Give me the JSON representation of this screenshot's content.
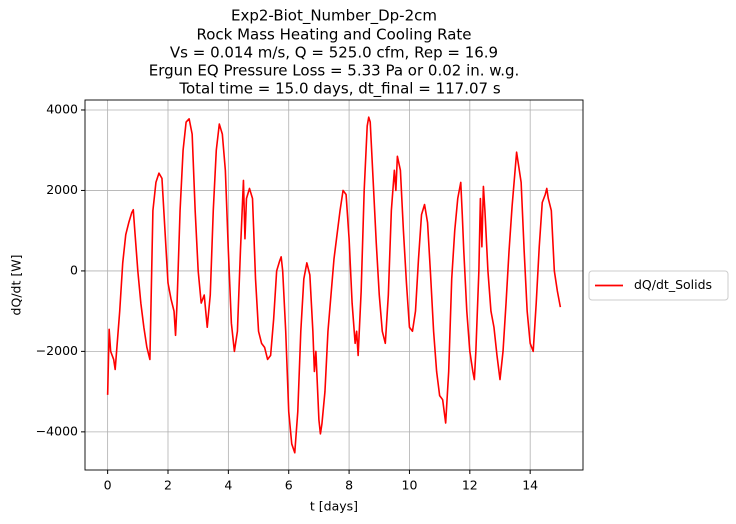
{
  "chart_data": {
    "type": "line",
    "title": [
      "Exp2-Biot_Number_Dp-2cm",
      "Rock Mass Heating and Cooling Rate",
      "Vs = 0.014 m/s, Q = 525.0 cfm, Rep = 16.9",
      "Ergun EQ Pressure Loss = 5.33 Pa or 0.02 in. w.g.",
      "Total time = 15.0 days, dt_final = 117.07 s"
    ],
    "x_label": "t [days]",
    "y_label": "dQ/dt [W]",
    "x": [
      0,
      0.05,
      0.1,
      0.2,
      0.25,
      0.4,
      0.5,
      0.6,
      0.7,
      0.8,
      0.85,
      0.9,
      1.0,
      1.1,
      1.2,
      1.3,
      1.4,
      1.5,
      1.6,
      1.7,
      1.8,
      1.9,
      2.0,
      2.1,
      2.2,
      2.25,
      2.3,
      2.4,
      2.5,
      2.6,
      2.7,
      2.8,
      2.9,
      3.0,
      3.1,
      3.2,
      3.3,
      3.4,
      3.5,
      3.6,
      3.7,
      3.8,
      3.9,
      4.0,
      4.1,
      4.2,
      4.3,
      4.4,
      4.5,
      4.55,
      4.6,
      4.7,
      4.8,
      4.9,
      5.0,
      5.1,
      5.2,
      5.3,
      5.4,
      5.5,
      5.6,
      5.7,
      5.75,
      5.8,
      5.9,
      6.0,
      6.1,
      6.2,
      6.3,
      6.4,
      6.5,
      6.6,
      6.7,
      6.8,
      6.85,
      6.9,
      7.0,
      7.05,
      7.1,
      7.2,
      7.3,
      7.5,
      7.7,
      7.8,
      7.9,
      8.0,
      8.1,
      8.2,
      8.25,
      8.3,
      8.4,
      8.5,
      8.6,
      8.65,
      8.7,
      8.8,
      8.9,
      9.0,
      9.1,
      9.2,
      9.3,
      9.4,
      9.5,
      9.55,
      9.6,
      9.7,
      9.8,
      9.9,
      10.0,
      10.1,
      10.2,
      10.3,
      10.4,
      10.5,
      10.6,
      10.7,
      10.8,
      10.9,
      11.0,
      11.1,
      11.2,
      11.3,
      11.4,
      11.5,
      11.6,
      11.7,
      11.75,
      11.8,
      11.9,
      12.0,
      12.1,
      12.15,
      12.2,
      12.3,
      12.35,
      12.4,
      12.45,
      12.5,
      12.6,
      12.7,
      12.8,
      12.9,
      13.0,
      13.1,
      13.2,
      13.3,
      13.4,
      13.5,
      13.55,
      13.6,
      13.7,
      13.8,
      13.9,
      14.0,
      14.1,
      14.2,
      14.3,
      14.4,
      14.5,
      14.55,
      14.6,
      14.7,
      14.8,
      14.9,
      15.0
    ],
    "series": [
      {
        "name": "dQ/dt_Solids",
        "color": "#ff0000",
        "values": [
          -3080,
          -1450,
          -2000,
          -2200,
          -2450,
          -1000,
          200,
          900,
          1200,
          1450,
          1520,
          1000,
          0,
          -800,
          -1400,
          -1900,
          -2200,
          1500,
          2200,
          2430,
          2300,
          1000,
          -300,
          -700,
          -1000,
          -1600,
          -800,
          1500,
          3000,
          3700,
          3780,
          3400,
          1500,
          0,
          -800,
          -600,
          -1400,
          -600,
          1500,
          3000,
          3650,
          3400,
          2500,
          500,
          -1300,
          -2000,
          -1500,
          500,
          2250,
          800,
          1800,
          2050,
          1800,
          -200,
          -1500,
          -1800,
          -1900,
          -2200,
          -2100,
          -1200,
          0,
          250,
          350,
          0,
          -1500,
          -3500,
          -4300,
          -4520,
          -3500,
          -1500,
          -200,
          200,
          -100,
          -1500,
          -2500,
          -2000,
          -3700,
          -4050,
          -3800,
          -3000,
          -1500,
          300,
          1500,
          2000,
          1900,
          800,
          -800,
          -1800,
          -1500,
          -2100,
          -500,
          2000,
          3600,
          3820,
          3700,
          2200,
          700,
          -600,
          -1500,
          -1800,
          -600,
          1500,
          2500,
          2000,
          2850,
          2500,
          1000,
          -300,
          -1400,
          -1500,
          -1000,
          300,
          1400,
          1650,
          1200,
          -100,
          -1500,
          -2500,
          -3100,
          -3200,
          -3780,
          -2500,
          -200,
          1000,
          1800,
          2200,
          1400,
          500,
          -1000,
          -2000,
          -2500,
          -2700,
          -2000,
          0,
          1800,
          600,
          2100,
          1500,
          0,
          -1000,
          -1400,
          -2100,
          -2700,
          -2000,
          -800,
          500,
          1600,
          2500,
          2950,
          2700,
          2200,
          500,
          -1000,
          -1800,
          -2000,
          -800,
          600,
          1700,
          1900,
          2050,
          1800,
          1500,
          0,
          -500,
          -900
        ]
      }
    ],
    "xlim": [
      -0.75,
      15.75
    ],
    "ylim": [
      -4948,
      4248
    ],
    "xticks": [
      0,
      2,
      4,
      6,
      8,
      10,
      12,
      14
    ],
    "yticks": [
      {
        "value": -4000,
        "label": "−4000"
      },
      {
        "value": -2000,
        "label": "−2000"
      },
      0,
      2000,
      4000
    ],
    "grid": true,
    "legend": "right"
  }
}
